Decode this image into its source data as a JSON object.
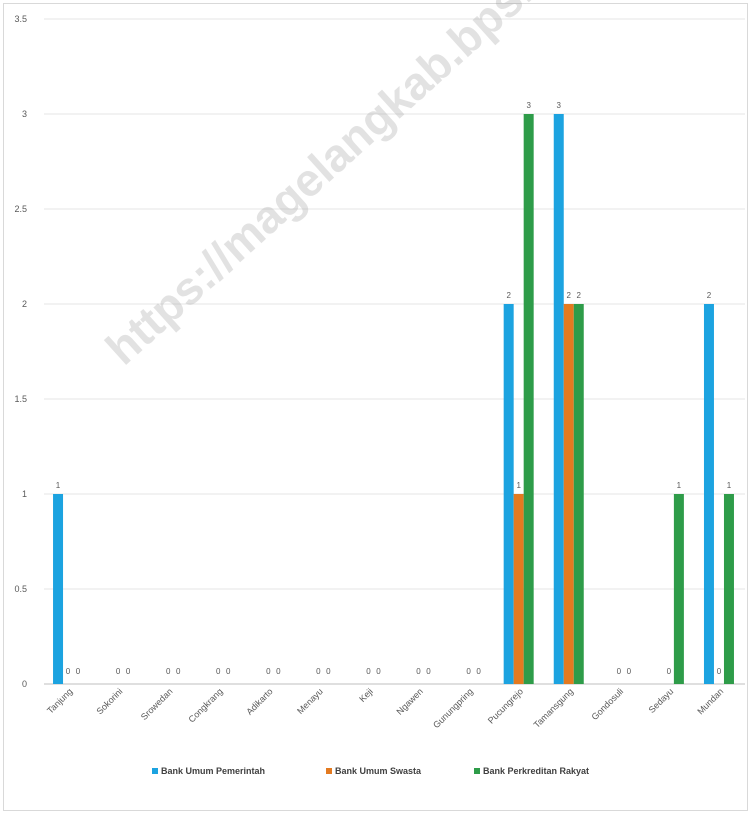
{
  "chart_data": {
    "type": "bar",
    "title": "",
    "xlabel": "",
    "ylabel": "",
    "ylim": [
      0,
      3.5
    ],
    "yticks": [
      "0",
      "0.5",
      "1",
      "1.5",
      "2",
      "2.5",
      "3",
      "3.5"
    ],
    "yticks_values": [
      0,
      0.5,
      1,
      1.5,
      2,
      2.5,
      3,
      3.5
    ],
    "grid": true,
    "legend_position": "bottom",
    "categories": [
      "Tanjung",
      "Sokorini",
      "Srowedan",
      "Congkrang",
      "Adikarto",
      "Menayu",
      "Keji",
      "Ngawen",
      "Gunungpring",
      "Pucungrejo",
      "Tamansgung",
      "Gondosuli",
      "Sedayu",
      "Mundan"
    ],
    "series": [
      {
        "name": "Bank Umum Pemerintah",
        "color": "#1ca3e0",
        "values": [
          1,
          null,
          null,
          null,
          null,
          null,
          null,
          null,
          null,
          2,
          3,
          null,
          null,
          2
        ]
      },
      {
        "name": "Bank Umum Swasta",
        "color": "#e37a20",
        "values": [
          0,
          0,
          0,
          0,
          0,
          0,
          0,
          0,
          0,
          1,
          2,
          0,
          0,
          0
        ]
      },
      {
        "name": "Bank Perkreditan Rakyat",
        "color": "#2e9c49",
        "values": [
          0,
          0,
          0,
          0,
          0,
          0,
          0,
          0,
          0,
          3,
          2,
          0,
          1,
          1
        ]
      }
    ]
  },
  "watermark": "https://magelangkab.bps.go.id"
}
